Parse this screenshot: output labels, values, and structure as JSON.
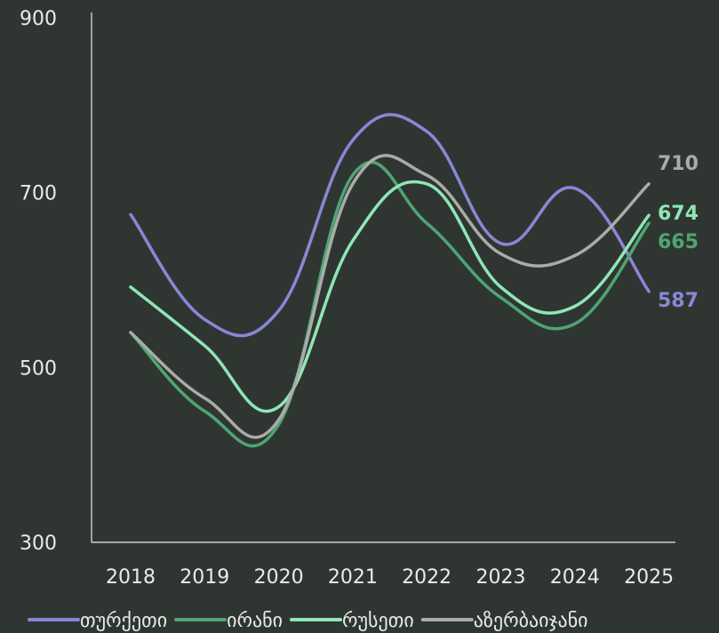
{
  "chart_data": {
    "type": "line",
    "title": "",
    "xlabel": "",
    "ylabel": "",
    "x": [
      2018,
      2019,
      2020,
      2021,
      2022,
      2023,
      2024,
      2025
    ],
    "ylim": [
      300,
      900
    ],
    "yticks": [
      300,
      500,
      700,
      900
    ],
    "grid": false,
    "legend_position": "bottom",
    "series": [
      {
        "name": "თურქეთი",
        "color": "#8c86d6",
        "values": [
          675,
          555,
          565,
          760,
          770,
          642,
          705,
          587
        ],
        "end_label": "587"
      },
      {
        "name": "ირანი",
        "color": "#4fa573",
        "values": [
          540,
          450,
          435,
          720,
          665,
          580,
          550,
          665
        ],
        "end_label": "665"
      },
      {
        "name": "რუსეთი",
        "color": "#8fe6b5",
        "values": [
          592,
          525,
          455,
          645,
          710,
          592,
          570,
          674
        ],
        "end_label": "674"
      },
      {
        "name": "აზერბაიჯანი",
        "color": "#a9aca9",
        "values": [
          540,
          465,
          440,
          710,
          720,
          630,
          628,
          710
        ],
        "end_label": "710"
      }
    ]
  }
}
